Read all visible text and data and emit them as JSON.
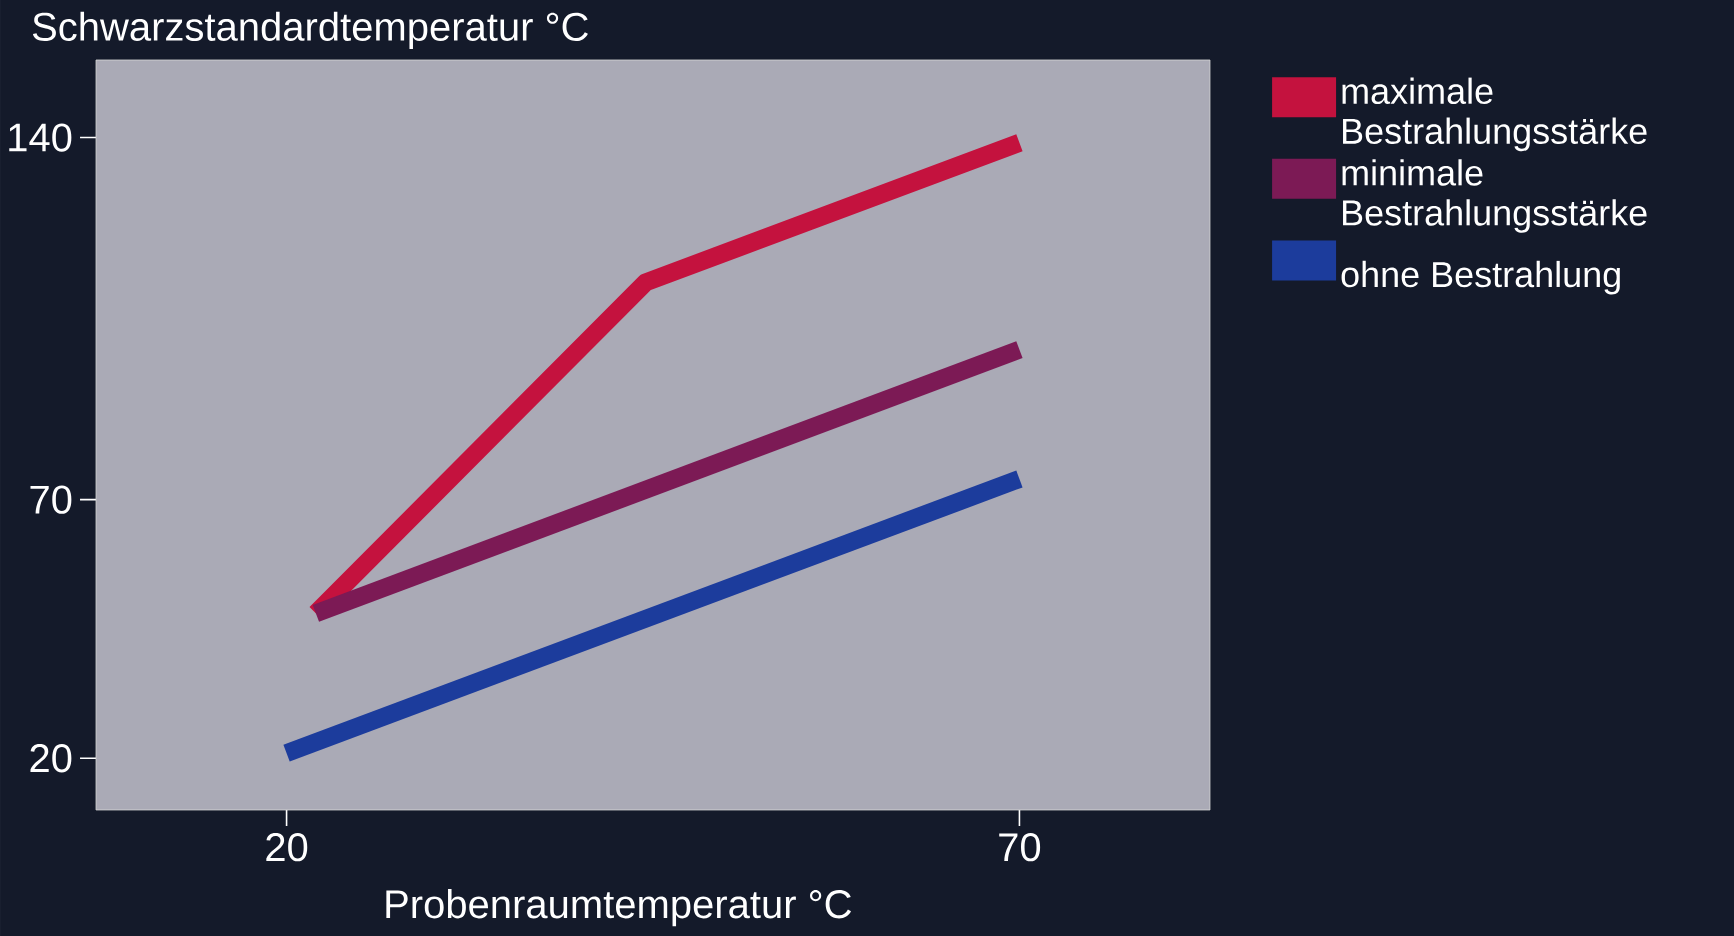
{
  "chart_data": {
    "type": "line",
    "xlabel": "Probenraumtemperatur  °C",
    "ylabel": "Schwarzstandardtemperatur  °C",
    "xlim": [
      7,
      83
    ],
    "ylim": [
      10,
      155
    ],
    "xticks": [
      20,
      70
    ],
    "yticks": [
      20,
      70,
      140
    ],
    "legend": "right",
    "marker": "none",
    "line_style": "solid",
    "series": [
      {
        "name": "maximale Bestrahlungsstärke",
        "color": "#c4123e",
        "x": [
          22,
          44.5,
          70
        ],
        "values": [
          48,
          112,
          139
        ]
      },
      {
        "name": "minimale Bestrahlungsstärke",
        "color": "#7c1a55",
        "x": [
          22,
          70
        ],
        "values": [
          48,
          99
        ]
      },
      {
        "name": "ohne  Bestrahlung",
        "color": "#1c3c9c",
        "x": [
          20,
          70
        ],
        "values": [
          21,
          74
        ]
      }
    ]
  }
}
